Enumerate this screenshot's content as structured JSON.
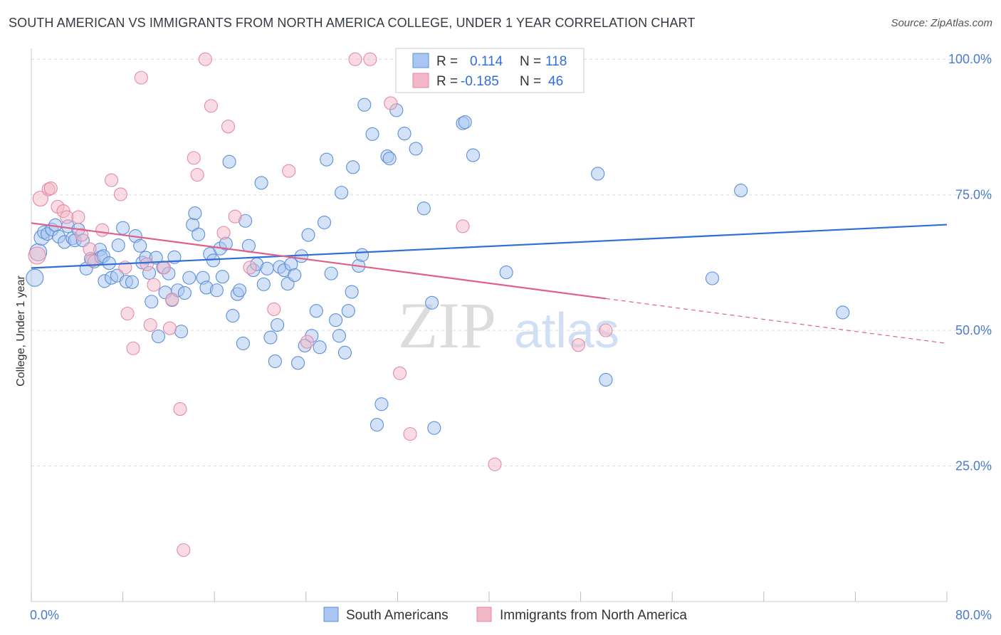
{
  "title": "SOUTH AMERICAN VS IMMIGRANTS FROM NORTH AMERICA COLLEGE, UNDER 1 YEAR CORRELATION CHART",
  "source": "Source: ZipAtlas.com",
  "watermark": {
    "zip": "ZIP",
    "atlas": "atlas"
  },
  "colors": {
    "blue_fill": "#a9c6f0",
    "blue_stroke": "#5b8fd8",
    "blue_line": "#2f6fd6",
    "pink_fill": "#f4b7c8",
    "pink_stroke": "#e58aa6",
    "pink_line": "#e0608a",
    "grid": "#dcdcdc",
    "axis_text": "#4a7bd0"
  },
  "legend": {
    "rows": [
      {
        "series": "South Americans",
        "r_label": "R =",
        "r_value": "0.114",
        "n_label": "N =",
        "n_value": "118"
      },
      {
        "series": "Immigrants from North America",
        "r_label": "R =",
        "r_value": "-0.185",
        "n_label": "N =",
        "n_value": "46"
      }
    ]
  },
  "chart_data": {
    "type": "scatter",
    "title": "SOUTH AMERICAN VS IMMIGRANTS FROM NORTH AMERICA COLLEGE, UNDER 1 YEAR CORRELATION CHART",
    "xlabel": "",
    "ylabel": "College, Under 1 year",
    "xlim": [
      0,
      80
    ],
    "ylim": [
      0,
      102
    ],
    "x_tick_labels": [
      {
        "value": 0,
        "label": "0.0%"
      },
      {
        "value": 80,
        "label": "80.0%"
      }
    ],
    "y_tick_labels": [
      {
        "value": 25,
        "label": "25.0%"
      },
      {
        "value": 50,
        "label": "50.0%"
      },
      {
        "value": 75,
        "label": "75.0%"
      },
      {
        "value": 100,
        "label": "100.0%"
      }
    ],
    "grid": true,
    "series": [
      {
        "name": "South Americans",
        "color": "blue",
        "r": 0.114,
        "n": 118,
        "trend": {
          "x": [
            0,
            80
          ],
          "y": [
            61.5,
            69.5
          ],
          "solid_to": 80
        },
        "points": [
          [
            0.3,
            59.7,
            2
          ],
          [
            0.6,
            64.4,
            2
          ],
          [
            0.9,
            67.1,
            1
          ],
          [
            1.1,
            68.1,
            0
          ],
          [
            1.4,
            67.8,
            0
          ],
          [
            1.8,
            68.6,
            0
          ],
          [
            2.1,
            69.4,
            0
          ],
          [
            2.4,
            67.3,
            0
          ],
          [
            2.9,
            66.3,
            0
          ],
          [
            3.2,
            69.2,
            0
          ],
          [
            3.6,
            67.0,
            0
          ],
          [
            3.8,
            66.6,
            0
          ],
          [
            4.1,
            68.6,
            0
          ],
          [
            4.5,
            66.6,
            0
          ],
          [
            4.8,
            61.4,
            0
          ],
          [
            5.2,
            63.2,
            0
          ],
          [
            5.5,
            62.7,
            0
          ],
          [
            6.0,
            64.9,
            0
          ],
          [
            6.1,
            63.5,
            0
          ],
          [
            6.3,
            63.7,
            0
          ],
          [
            6.4,
            59.1,
            0
          ],
          [
            6.8,
            62.4,
            0
          ],
          [
            7.0,
            59.7,
            0
          ],
          [
            7.5,
            60.1,
            0
          ],
          [
            7.6,
            65.7,
            0
          ],
          [
            8.0,
            68.9,
            0
          ],
          [
            8.3,
            59.0,
            0
          ],
          [
            8.8,
            58.9,
            0
          ],
          [
            9.1,
            67.4,
            0
          ],
          [
            9.5,
            65.6,
            0
          ],
          [
            9.7,
            62.5,
            0
          ],
          [
            10.0,
            63.4,
            0
          ],
          [
            10.3,
            60.6,
            0
          ],
          [
            10.5,
            55.3,
            0
          ],
          [
            10.9,
            63.4,
            0
          ],
          [
            11.1,
            48.9,
            0
          ],
          [
            11.5,
            61.6,
            0
          ],
          [
            11.7,
            57.0,
            0
          ],
          [
            12.0,
            60.5,
            0
          ],
          [
            12.3,
            55.6,
            0
          ],
          [
            12.5,
            63.5,
            0
          ],
          [
            12.8,
            57.4,
            0
          ],
          [
            13.1,
            49.8,
            0
          ],
          [
            13.4,
            56.9,
            0
          ],
          [
            13.8,
            59.7,
            0
          ],
          [
            14.1,
            69.5,
            0
          ],
          [
            14.3,
            71.6,
            0
          ],
          [
            14.6,
            67.7,
            0
          ],
          [
            15.0,
            59.7,
            0
          ],
          [
            15.3,
            57.9,
            0
          ],
          [
            15.6,
            64.1,
            0
          ],
          [
            15.9,
            62.9,
            0
          ],
          [
            16.2,
            57.4,
            0
          ],
          [
            16.5,
            65.1,
            0
          ],
          [
            16.7,
            59.9,
            0
          ],
          [
            17.0,
            66.0,
            0
          ],
          [
            17.3,
            81.1,
            0
          ],
          [
            17.6,
            52.7,
            0
          ],
          [
            18.0,
            56.7,
            0
          ],
          [
            18.2,
            57.4,
            0
          ],
          [
            18.5,
            47.6,
            0
          ],
          [
            18.7,
            70.2,
            0
          ],
          [
            19.0,
            65.6,
            0
          ],
          [
            19.4,
            61.1,
            0
          ],
          [
            19.7,
            62.2,
            0
          ],
          [
            20.1,
            77.2,
            0
          ],
          [
            20.3,
            58.5,
            0
          ],
          [
            20.6,
            61.4,
            0
          ],
          [
            20.9,
            48.7,
            0
          ],
          [
            21.3,
            44.3,
            0
          ],
          [
            21.5,
            51.0,
            0
          ],
          [
            21.7,
            61.7,
            0
          ],
          [
            22.1,
            61.1,
            0
          ],
          [
            22.4,
            58.6,
            0
          ],
          [
            22.7,
            62.2,
            0
          ],
          [
            23.0,
            60.2,
            0
          ],
          [
            23.3,
            44.0,
            0
          ],
          [
            23.6,
            63.7,
            0
          ],
          [
            23.9,
            47.2,
            0
          ],
          [
            24.2,
            67.6,
            0
          ],
          [
            24.5,
            49.0,
            0
          ],
          [
            24.9,
            53.6,
            0
          ],
          [
            25.2,
            46.9,
            0
          ],
          [
            25.6,
            69.9,
            0
          ],
          [
            25.8,
            81.5,
            0
          ],
          [
            26.2,
            60.5,
            0
          ],
          [
            26.6,
            51.9,
            0
          ],
          [
            26.9,
            49.0,
            0
          ],
          [
            27.1,
            75.4,
            0
          ],
          [
            27.4,
            45.9,
            0
          ],
          [
            27.7,
            53.6,
            0
          ],
          [
            28.0,
            57.1,
            0
          ],
          [
            28.1,
            80.1,
            0
          ],
          [
            28.6,
            61.9,
            0
          ],
          [
            28.9,
            63.9,
            0
          ],
          [
            29.1,
            91.6,
            0
          ],
          [
            29.8,
            86.2,
            0
          ],
          [
            30.6,
            36.4,
            0
          ],
          [
            30.2,
            32.6,
            0
          ],
          [
            31.1,
            82.1,
            0
          ],
          [
            31.3,
            81.7,
            0
          ],
          [
            31.9,
            90.6,
            0
          ],
          [
            32.6,
            86.3,
            0
          ],
          [
            33.6,
            83.5,
            0
          ],
          [
            34.3,
            72.5,
            0
          ],
          [
            35.0,
            55.1,
            0
          ],
          [
            35.2,
            32.0,
            0
          ],
          [
            37.7,
            88.2,
            0
          ],
          [
            37.9,
            88.4,
            0
          ],
          [
            38.6,
            82.3,
            0
          ],
          [
            41.5,
            60.7,
            0
          ],
          [
            49.5,
            78.9,
            0
          ],
          [
            50.2,
            40.9,
            0
          ],
          [
            59.5,
            59.6,
            0
          ],
          [
            62.0,
            75.8,
            0
          ],
          [
            70.9,
            53.3,
            0
          ]
        ]
      },
      {
        "name": "Immigrants from North America",
        "color": "pink",
        "r": -0.185,
        "n": 46,
        "trend": {
          "x": [
            0,
            80
          ],
          "y": [
            69.8,
            47.6
          ],
          "solid_to": 50.2
        },
        "points": [
          [
            0.5,
            63.8,
            2
          ],
          [
            0.8,
            74.3,
            1
          ],
          [
            1.5,
            76.0,
            0
          ],
          [
            1.7,
            76.2,
            0
          ],
          [
            2.3,
            72.8,
            0
          ],
          [
            2.8,
            72.0,
            0
          ],
          [
            3.1,
            70.9,
            0
          ],
          [
            4.1,
            70.9,
            0
          ],
          [
            4.4,
            67.6,
            0
          ],
          [
            5.1,
            65.0,
            0
          ],
          [
            5.3,
            62.9,
            0
          ],
          [
            6.2,
            68.5,
            0
          ],
          [
            7.0,
            77.7,
            0
          ],
          [
            7.8,
            75.1,
            0
          ],
          [
            8.2,
            61.6,
            0
          ],
          [
            8.4,
            53.1,
            0
          ],
          [
            8.9,
            46.7,
            0
          ],
          [
            9.6,
            96.6,
            0
          ],
          [
            10.1,
            62.2,
            0
          ],
          [
            10.4,
            51.0,
            0
          ],
          [
            10.7,
            58.4,
            0
          ],
          [
            11.6,
            61.6,
            0
          ],
          [
            12.1,
            50.4,
            0
          ],
          [
            12.3,
            55.7,
            0
          ],
          [
            13.0,
            35.5,
            0
          ],
          [
            13.3,
            9.5,
            0
          ],
          [
            14.2,
            81.8,
            0
          ],
          [
            14.5,
            78.7,
            0
          ],
          [
            15.2,
            100.0,
            0
          ],
          [
            15.7,
            91.4,
            0
          ],
          [
            16.8,
            68.0,
            0
          ],
          [
            17.2,
            87.6,
            0
          ],
          [
            17.8,
            71.0,
            0
          ],
          [
            19.1,
            61.6,
            0
          ],
          [
            21.2,
            53.9,
            0
          ],
          [
            22.5,
            79.4,
            0
          ],
          [
            24.1,
            47.9,
            0
          ],
          [
            28.3,
            100.0,
            0
          ],
          [
            29.6,
            100.0,
            0
          ],
          [
            31.4,
            91.9,
            0
          ],
          [
            32.2,
            42.1,
            0
          ],
          [
            33.1,
            30.9,
            0
          ],
          [
            37.7,
            69.2,
            0
          ],
          [
            40.5,
            25.3,
            0
          ],
          [
            47.8,
            47.3,
            0
          ],
          [
            50.2,
            50.0,
            0
          ]
        ]
      }
    ]
  }
}
